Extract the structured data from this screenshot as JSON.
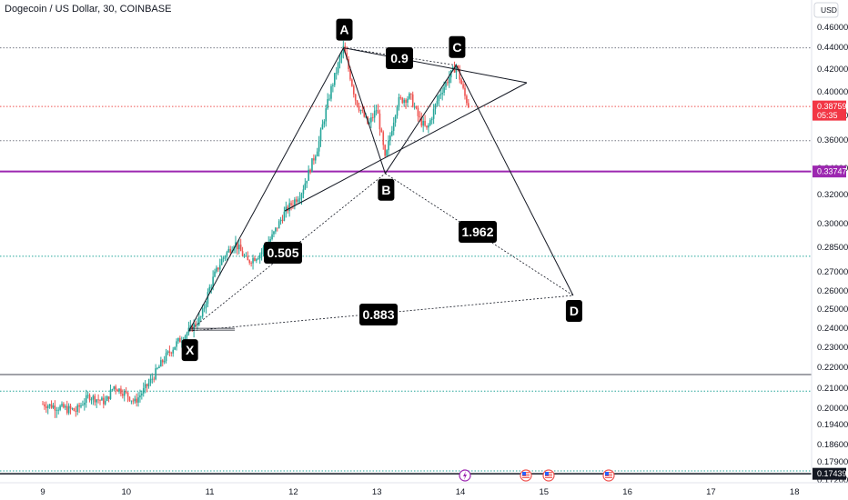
{
  "header": {
    "title": "Dogecoin / US Dollar, 30, COINBASE"
  },
  "currency_button": {
    "label": "USD"
  },
  "price_tags": {
    "last_price": "0.38759",
    "countdown": "05:35",
    "purple_level": "0.33747",
    "black_level": "0.17439"
  },
  "colors": {
    "up": "#26a69a",
    "down": "#ef5350",
    "purple": "#9c27b0",
    "tag_red": "#f23645",
    "dotted_green": "#26a69a",
    "dotted_red": "#ef5350"
  },
  "event_icons": [
    "lightning-icon",
    "us-flag-icon",
    "us-flag-icon",
    "us-flag-icon"
  ],
  "chart_data": {
    "type": "candlestick",
    "title": "Dogecoin / US Dollar, 30, COINBASE",
    "x_ticks": [
      "9",
      "10",
      "11",
      "12",
      "13",
      "14",
      "15",
      "16",
      "17",
      "18"
    ],
    "y_ticks": [
      "0.46000",
      "0.44000",
      "0.42000",
      "0.40000",
      "0.38000",
      "0.36000",
      "0.34000",
      "0.32000",
      "0.30000",
      "0.28500",
      "0.27000",
      "0.26000",
      "0.25000",
      "0.24000",
      "0.23000",
      "0.22000",
      "0.21000",
      "0.20000",
      "0.19400",
      "0.18600",
      "0.17900",
      "0.17200"
    ],
    "ylim": [
      0.172,
      0.463
    ],
    "harmonic_points": [
      {
        "label": "X",
        "day": 10.75,
        "price": 0.2385
      },
      {
        "label": "A",
        "day": 12.6,
        "price": 0.4395
      },
      {
        "label": "B",
        "day": 13.1,
        "price": 0.336
      },
      {
        "label": "C",
        "day": 13.95,
        "price": 0.4235
      },
      {
        "label": "D",
        "day": 15.35,
        "price": 0.2575
      }
    ],
    "ratios": [
      {
        "value": "0.9"
      },
      {
        "value": "0.505"
      },
      {
        "value": "1.962"
      },
      {
        "value": "0.883"
      }
    ],
    "levels": [
      {
        "price": 0.4395,
        "style": "dotted-black"
      },
      {
        "price": 0.38759,
        "style": "dotted-red"
      },
      {
        "price": 0.3595,
        "style": "dotted-black"
      },
      {
        "price": 0.33747,
        "style": "solid-purple"
      },
      {
        "price": 0.2795,
        "style": "dotted-green"
      },
      {
        "price": 0.2165,
        "style": "solid-gray"
      },
      {
        "price": 0.2085,
        "style": "dotted-green"
      },
      {
        "price": 0.1755,
        "style": "dotted-green"
      },
      {
        "price": 0.17439,
        "style": "solid-black"
      }
    ],
    "grid": false
  }
}
